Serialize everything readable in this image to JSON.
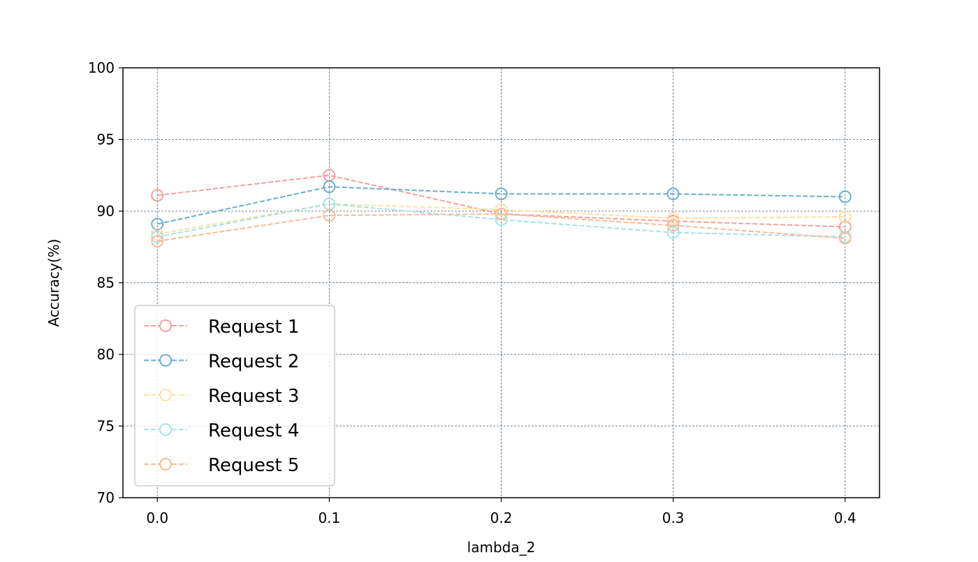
{
  "chart_data": {
    "type": "line",
    "title": "",
    "xlabel": "lambda_2",
    "ylabel": "Accuracy(%)",
    "x": [
      0.0,
      0.1,
      0.2,
      0.3,
      0.4
    ],
    "x_tick_labels": [
      "0.0",
      "0.1",
      "0.2",
      "0.3",
      "0.4"
    ],
    "xlim": [
      -0.02,
      0.42
    ],
    "ylim": [
      70,
      100
    ],
    "y_ticks": [
      70,
      75,
      80,
      85,
      90,
      95,
      100
    ],
    "y_tick_labels": [
      "70",
      "75",
      "80",
      "85",
      "90",
      "95",
      "100"
    ],
    "grid": true,
    "line_style": "dashed",
    "marker": "open-circle",
    "legend_position": "lower-left",
    "series": [
      {
        "name": "Request 1",
        "color": "#f4a09a",
        "values": [
          91.1,
          92.5,
          89.8,
          89.3,
          88.9
        ]
      },
      {
        "name": "Request 2",
        "color": "#6aaece",
        "values": [
          89.1,
          91.7,
          91.2,
          91.2,
          91.0
        ]
      },
      {
        "name": "Request 3",
        "color": "#fde1a0",
        "values": [
          88.4,
          90.5,
          90.1,
          89.5,
          89.6
        ]
      },
      {
        "name": "Request 4",
        "color": "#a6e1ea",
        "values": [
          88.2,
          90.5,
          89.4,
          88.5,
          88.2
        ]
      },
      {
        "name": "Request 5",
        "color": "#f8bc95",
        "values": [
          87.9,
          89.7,
          89.8,
          89.0,
          88.1
        ]
      }
    ]
  }
}
